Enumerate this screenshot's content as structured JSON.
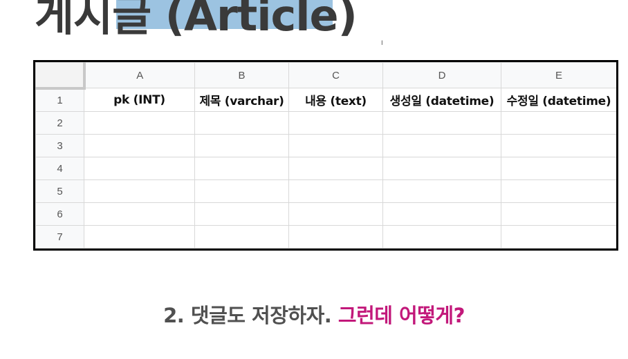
{
  "title": {
    "text": "게시글 (Article)",
    "highlight_color": "#9cc3e1"
  },
  "spreadsheet": {
    "columns": [
      "A",
      "B",
      "C",
      "D",
      "E"
    ],
    "rows": [
      "1",
      "2",
      "3",
      "4",
      "5",
      "6",
      "7"
    ],
    "headers": [
      "pk (INT)",
      "제목 (varchar)",
      "내용 (text)",
      "생성일 (datetime)",
      "수정일 (datetime)"
    ]
  },
  "subtitle": {
    "main": "2. 댓글도 저장하자.",
    "accent": "그런데 어떻게?",
    "accent_color": "#c2187a"
  }
}
